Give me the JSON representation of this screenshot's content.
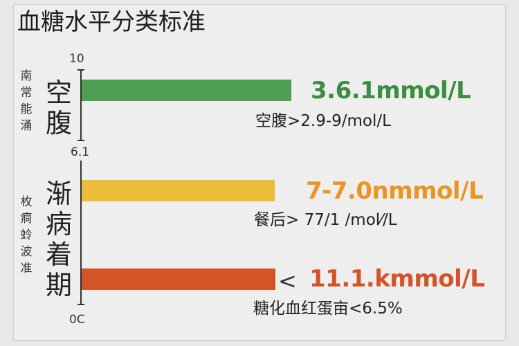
{
  "chart_data": {
    "type": "bar",
    "orientation": "horizontal",
    "title": "血糖水平分类标准",
    "yticks": [
      "10",
      "6.1",
      "0C"
    ],
    "side_labels": [
      "南常能涌",
      "枚痌蛉波准"
    ],
    "group_labels": [
      "空腹",
      "渐病着期"
    ],
    "bars": [
      {
        "value_label": "3.6.1mmol/L",
        "note": "空腹>2.9-9/mol/L",
        "color": "#4e9e54",
        "text_color": "#3c8d3f"
      },
      {
        "value_label": "7-7.0nmmol/L",
        "note": "餐后> 77/1 /mol⁄/L",
        "color": "#ebbb3a",
        "text_color": "#ec9422"
      },
      {
        "value_label": "11.1.kmmol/L",
        "prefix": "<",
        "note": "糖化血红蛋亩<6.5%",
        "color": "#d45427",
        "text_color": "#d4532a"
      }
    ],
    "grid": false,
    "legend": "none"
  }
}
